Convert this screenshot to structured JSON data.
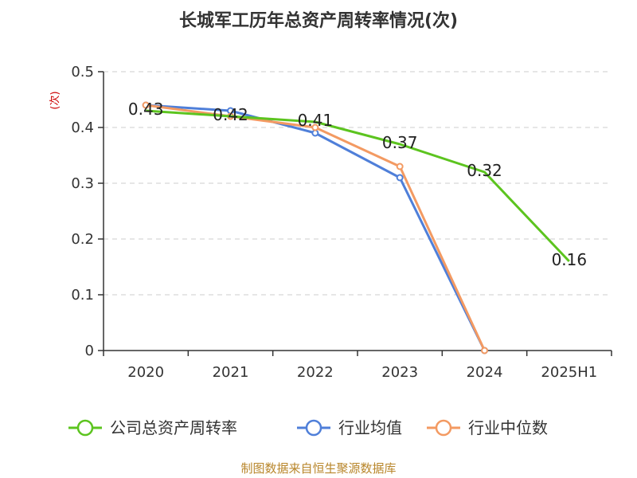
{
  "chart_data": {
    "type": "line",
    "title": "长城军工历年总资产周转率情况(次)",
    "xlabel": "",
    "ylabel": "(次)",
    "categories": [
      "2020",
      "2021",
      "2022",
      "2023",
      "2024",
      "2025H1"
    ],
    "ylim": [
      0,
      0.5
    ],
    "yticks": [
      "0",
      "0.1",
      "0.2",
      "0.3",
      "0.4",
      "0.5"
    ],
    "ytick_values": [
      0,
      0.1,
      0.2,
      0.3,
      0.4,
      0.5
    ],
    "grid": true,
    "legend_position": "bottom",
    "series": [
      {
        "name": "公司总资产周转率",
        "color": "#5cc41f",
        "values": [
          0.43,
          0.42,
          0.41,
          0.37,
          0.32,
          0.16
        ],
        "labels": [
          "0.43",
          "0.42",
          "0.41",
          "0.37",
          "0.32",
          "0.16"
        ],
        "show_labels": true,
        "show_markers": false
      },
      {
        "name": "行业均值",
        "color": "#4f7fd9",
        "values": [
          0.44,
          0.43,
          0.39,
          0.31,
          0.0,
          null
        ],
        "show_labels": false,
        "show_markers": true
      },
      {
        "name": "行业中位数",
        "color": "#f39a62",
        "values": [
          0.44,
          0.42,
          0.4,
          0.33,
          0.0,
          null
        ],
        "show_labels": false,
        "show_markers": true
      }
    ]
  },
  "source_text": "制图数据来自恒生聚源数据库"
}
